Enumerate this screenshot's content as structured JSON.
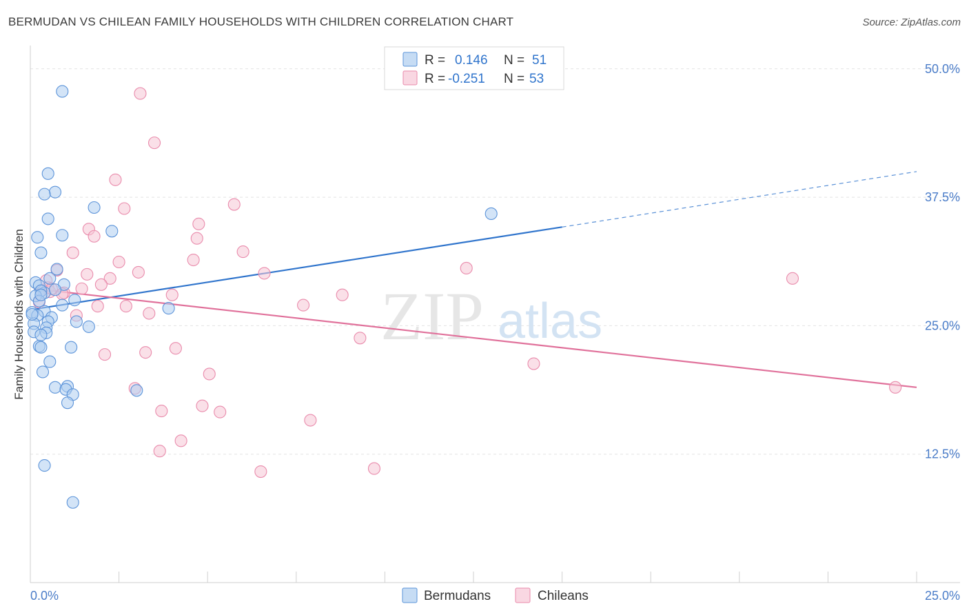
{
  "title": "BERMUDAN VS CHILEAN FAMILY HOUSEHOLDS WITH CHILDREN CORRELATION CHART",
  "source": "Source: ZipAtlas.com",
  "watermark": {
    "zip": "ZIP",
    "atlas": "atlas"
  },
  "colors": {
    "blue_fill": "#aecdf0",
    "blue_stroke": "#5b93d9",
    "blue_line": "#2f74cc",
    "pink_fill": "#f6c6d6",
    "pink_stroke": "#e98aab",
    "pink_line": "#e0709a",
    "grid": "#e2e2e2",
    "tick_text": "#4a7cc8"
  },
  "legend": {
    "rows": [
      {
        "r_label": "R =",
        "r_value": "0.146",
        "n_label": "N =",
        "n_value": "51"
      },
      {
        "r_label": "R =",
        "r_value": "-0.251",
        "n_label": "N =",
        "n_value": "53"
      }
    ]
  },
  "chart_data": {
    "type": "scatter",
    "title": "BERMUDAN VS CHILEAN FAMILY HOUSEHOLDS WITH CHILDREN CORRELATION CHART",
    "xlabel": "",
    "ylabel": "Family Households with Children",
    "xlim": [
      0,
      25
    ],
    "ylim": [
      0,
      52
    ],
    "x_tick_labels": [
      "0.0%",
      "25.0%"
    ],
    "y_ticks": [
      12.5,
      25.0,
      37.5,
      50.0
    ],
    "y_tick_labels": [
      "12.5%",
      "25.0%",
      "37.5%",
      "50.0%"
    ],
    "grid": true,
    "legend_position": "top-center",
    "series": [
      {
        "name": "Bermudans",
        "r": 0.146,
        "n": 51,
        "trend": {
          "x1": 0.1,
          "y1": 26.6,
          "x2": 15.0,
          "y2": 34.6,
          "x_end_dashed": 25.0,
          "y_end_dashed": 40.0
        },
        "points": [
          [
            0.9,
            47.8
          ],
          [
            0.5,
            39.8
          ],
          [
            0.7,
            38.0
          ],
          [
            0.4,
            37.8
          ],
          [
            1.8,
            36.5
          ],
          [
            0.5,
            35.4
          ],
          [
            2.3,
            34.2
          ],
          [
            0.2,
            33.6
          ],
          [
            0.9,
            33.8
          ],
          [
            0.3,
            32.1
          ],
          [
            0.75,
            30.5
          ],
          [
            0.55,
            29.6
          ],
          [
            0.95,
            29.0
          ],
          [
            0.15,
            29.2
          ],
          [
            0.25,
            28.9
          ],
          [
            0.4,
            28.2
          ],
          [
            0.3,
            28.4
          ],
          [
            0.15,
            27.9
          ],
          [
            0.25,
            27.4
          ],
          [
            1.25,
            27.5
          ],
          [
            0.9,
            27.0
          ],
          [
            0.05,
            26.3
          ],
          [
            0.4,
            26.4
          ],
          [
            0.2,
            26.0
          ],
          [
            0.6,
            25.8
          ],
          [
            0.5,
            25.4
          ],
          [
            0.1,
            25.2
          ],
          [
            1.3,
            25.4
          ],
          [
            0.45,
            24.8
          ],
          [
            1.65,
            24.9
          ],
          [
            0.1,
            24.4
          ],
          [
            0.45,
            24.3
          ],
          [
            0.3,
            24.1
          ],
          [
            3.9,
            26.7
          ],
          [
            0.25,
            23.0
          ],
          [
            0.3,
            22.9
          ],
          [
            1.15,
            22.9
          ],
          [
            0.55,
            21.5
          ],
          [
            0.35,
            20.5
          ],
          [
            0.7,
            19.0
          ],
          [
            1.05,
            19.1
          ],
          [
            1.0,
            18.8
          ],
          [
            3.0,
            18.7
          ],
          [
            1.2,
            18.3
          ],
          [
            1.05,
            17.5
          ],
          [
            13.0,
            35.9
          ],
          [
            0.4,
            11.4
          ],
          [
            1.2,
            7.8
          ],
          [
            0.05,
            26.1
          ],
          [
            0.3,
            28.0
          ],
          [
            0.7,
            28.5
          ]
        ]
      },
      {
        "name": "Chileans",
        "r": -0.251,
        "n": 53,
        "trend": {
          "x1": 0.1,
          "y1": 28.6,
          "x2": 25.0,
          "y2": 19.0
        },
        "points": [
          [
            3.1,
            47.6
          ],
          [
            3.5,
            42.8
          ],
          [
            2.4,
            39.2
          ],
          [
            2.65,
            36.4
          ],
          [
            5.75,
            36.8
          ],
          [
            4.75,
            34.9
          ],
          [
            1.65,
            34.4
          ],
          [
            1.8,
            33.7
          ],
          [
            4.7,
            33.5
          ],
          [
            1.2,
            32.1
          ],
          [
            6.0,
            32.2
          ],
          [
            2.5,
            31.2
          ],
          [
            4.6,
            31.4
          ],
          [
            0.75,
            30.4
          ],
          [
            3.05,
            30.2
          ],
          [
            1.6,
            30.0
          ],
          [
            6.6,
            30.1
          ],
          [
            12.3,
            30.6
          ],
          [
            21.5,
            29.6
          ],
          [
            0.45,
            29.4
          ],
          [
            2.25,
            29.6
          ],
          [
            2.0,
            29.0
          ],
          [
            0.5,
            28.7
          ],
          [
            0.95,
            28.2
          ],
          [
            1.45,
            28.6
          ],
          [
            4.0,
            28.0
          ],
          [
            8.8,
            28.0
          ],
          [
            0.25,
            27.3
          ],
          [
            0.3,
            28.4
          ],
          [
            0.55,
            28.3
          ],
          [
            0.9,
            28.1
          ],
          [
            2.7,
            26.9
          ],
          [
            1.9,
            26.9
          ],
          [
            7.7,
            27.0
          ],
          [
            1.3,
            26.0
          ],
          [
            3.35,
            26.2
          ],
          [
            9.3,
            23.8
          ],
          [
            4.1,
            22.8
          ],
          [
            3.25,
            22.4
          ],
          [
            2.1,
            22.2
          ],
          [
            14.2,
            21.3
          ],
          [
            5.05,
            20.3
          ],
          [
            2.95,
            18.9
          ],
          [
            4.85,
            17.2
          ],
          [
            3.7,
            16.7
          ],
          [
            5.35,
            16.6
          ],
          [
            7.9,
            15.8
          ],
          [
            4.25,
            13.8
          ],
          [
            3.65,
            12.8
          ],
          [
            6.5,
            10.8
          ],
          [
            9.7,
            11.1
          ],
          [
            24.4,
            19.0
          ],
          [
            0.6,
            28.6
          ]
        ]
      }
    ]
  },
  "bottom_legend": {
    "items": [
      {
        "label": "Bermudans"
      },
      {
        "label": "Chileans"
      }
    ]
  }
}
